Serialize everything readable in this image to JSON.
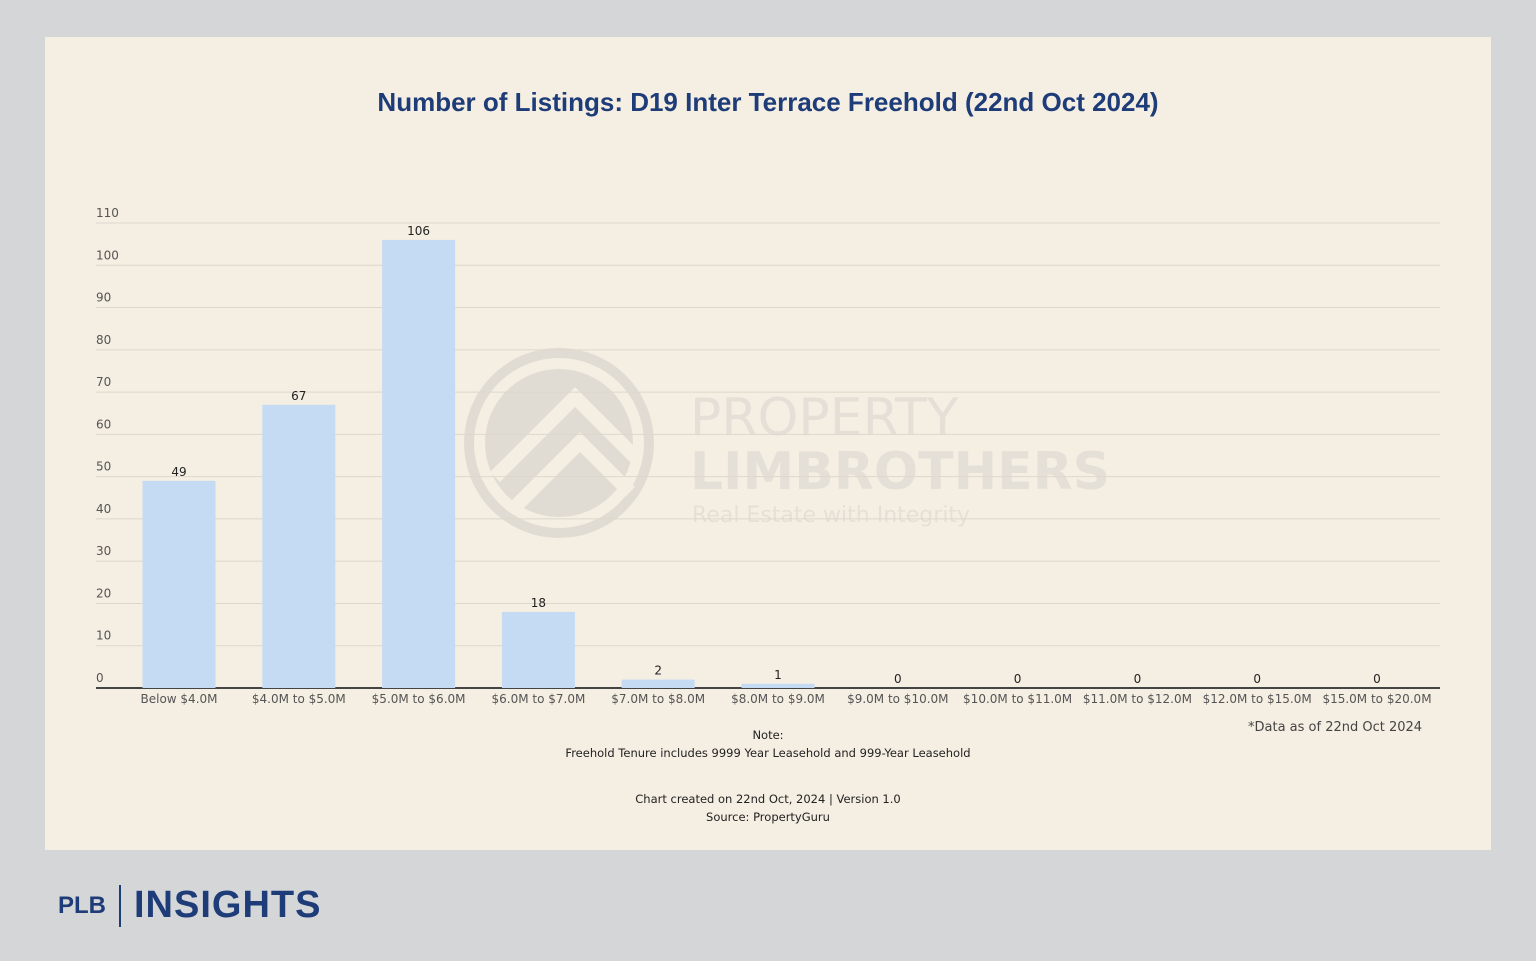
{
  "chart_data": {
    "type": "bar",
    "title": "Number of Listings: D19 Inter Terrace Freehold (22nd Oct 2024)",
    "categories": [
      "Below $4.0M",
      "$4.0M to $5.0M",
      "$5.0M to $6.0M",
      "$6.0M to $7.0M",
      "$7.0M to $8.0M",
      "$8.0M to $9.0M",
      "$9.0M to $10.0M",
      "$10.0M to $11.0M",
      "$11.0M to $12.0M",
      "$12.0M to $15.0M",
      "$15.0M to $20.0M"
    ],
    "values": [
      49,
      67,
      106,
      18,
      2,
      1,
      0,
      0,
      0,
      0,
      0
    ],
    "ylim": [
      0,
      110
    ],
    "yticks": [
      0,
      10,
      20,
      30,
      40,
      50,
      60,
      70,
      80,
      90,
      100,
      110
    ],
    "grid": true,
    "bar_color": "#c5dbf3",
    "xlabel": "",
    "ylabel": ""
  },
  "notes": {
    "note_label": "Note:",
    "note_text": "Freehold Tenure includes 9999 Year Leasehold and 999-Year Leasehold",
    "created": "Chart created on 22nd Oct, 2024 | Version 1.0",
    "source": "Source: PropertyGuru",
    "as_of": "*Data as of 22nd Oct 2024"
  },
  "watermark": {
    "line1": "PROPERTY",
    "line2": "LIMBROTHERS",
    "line3": "Real Estate with Integrity"
  },
  "brand": {
    "plb": "PLB",
    "insights": "INSIGHTS",
    "color": "#1d3c78"
  }
}
